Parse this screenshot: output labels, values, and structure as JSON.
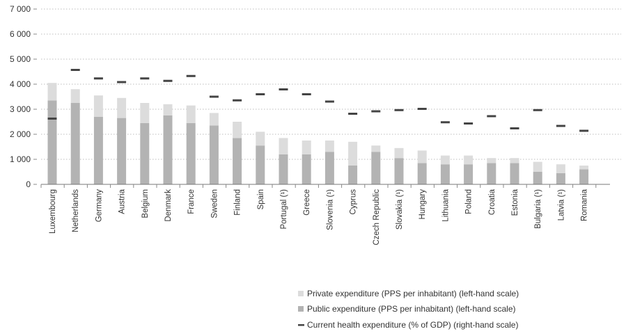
{
  "chart_data": {
    "type": "bar",
    "stacked": true,
    "categories": [
      "Luxembourg",
      "Netherlands",
      "Germany",
      "Austria",
      "Belgium",
      "Denmark",
      "France",
      "Sweden",
      "Finland",
      "Spain",
      "Portugal (¹)",
      "Greece",
      "Slovenia (¹)",
      "Cyprus",
      "Czech Republic",
      "Slovakia (¹)",
      "Hungary",
      "Lithuania",
      "Poland",
      "Croatia",
      "Estonia",
      "Bulgaria (¹)",
      "Latvia (¹)",
      "Romania"
    ],
    "series": [
      {
        "name": "Public expenditure (PPS per inhabitant) (left-hand scale)",
        "axis": "left",
        "color": "#b3b3b3",
        "values": [
          3350,
          3250,
          2700,
          2650,
          2450,
          2750,
          2450,
          2350,
          1850,
          1550,
          1200,
          1200,
          1300,
          750,
          1300,
          1050,
          850,
          800,
          800,
          850,
          850,
          500,
          450,
          600
        ]
      },
      {
        "name": "Private expenditure (PPS per inhabitant) (left-hand scale)",
        "axis": "left",
        "color": "#dcdcdc",
        "values": [
          700,
          550,
          850,
          800,
          800,
          450,
          700,
          500,
          650,
          550,
          650,
          550,
          450,
          950,
          250,
          400,
          500,
          350,
          350,
          200,
          200,
          400,
          350,
          150
        ]
      },
      {
        "name": "Current health expenditure (% of GDP) (right-hand scale)",
        "axis": "right",
        "marker": "dash",
        "color": "#444444",
        "values": [
          5.4,
          9.4,
          8.7,
          8.4,
          8.7,
          8.5,
          8.9,
          7.2,
          6.9,
          7.4,
          7.8,
          7.4,
          6.8,
          5.8,
          6.0,
          6.1,
          6.2,
          5.1,
          5.0,
          5.6,
          4.6,
          6.1,
          4.8,
          4.4
        ]
      }
    ],
    "y_ticks": [
      "7 000",
      "6 000",
      "5 000",
      "4 000",
      "3 000",
      "2 000",
      "1 000",
      "0"
    ],
    "ylim": [
      0,
      7000
    ],
    "ylim_right": [
      0,
      14.4
    ],
    "grid": "horizontal dotted",
    "legend": "bottom-right",
    "title": "",
    "xlabel": "",
    "ylabel": ""
  }
}
